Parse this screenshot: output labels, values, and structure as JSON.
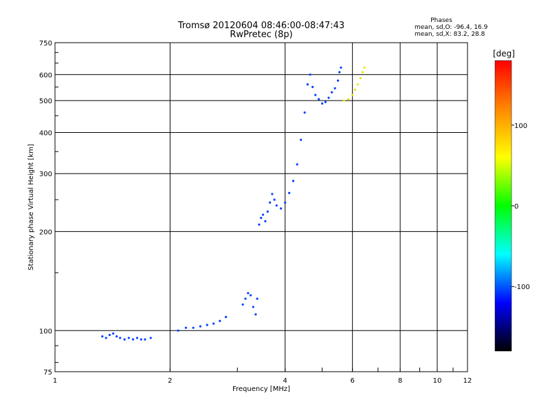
{
  "chart_data": {
    "type": "scatter",
    "title": "Tromsø 20120604 08:46:00-08:47:43",
    "subtitle": "RwPretec (8p)",
    "xlabel": "Frequency [MHz]",
    "ylabel": "Stationary phase Virtual Height [km]",
    "x_scale": "log",
    "y_scale": "log",
    "xlim": [
      1,
      12
    ],
    "ylim": [
      75,
      750
    ],
    "x_ticks": [
      1,
      2,
      4,
      6,
      8,
      10,
      12
    ],
    "x_tick_labels": [
      "1",
      "2",
      "4",
      "6",
      "8",
      "10",
      "12"
    ],
    "x_gridlines": [
      2,
      4,
      6,
      8,
      10
    ],
    "y_ticks": [
      75,
      100,
      200,
      300,
      400,
      500,
      600,
      750
    ],
    "y_tick_labels": [
      "75",
      "100",
      "200",
      "300",
      "400",
      "500",
      "600",
      "750"
    ],
    "grid": true,
    "phases_box": {
      "heading": "Phases",
      "line1": "mean, sd,O: -96.4, 16.9",
      "line2": "mean, sd,X:  83.2, 28.8"
    },
    "colorbar": {
      "label": "[deg]",
      "ticks": [
        100,
        0,
        -100
      ],
      "tick_labels": [
        "100",
        "0",
        "-100"
      ],
      "range": [
        -180,
        180
      ],
      "colors": [
        "#ff0000",
        "#ff8800",
        "#ffff00",
        "#00ff00",
        "#00ffff",
        "#0000ff",
        "#000000"
      ]
    },
    "series": [
      {
        "mode": "O",
        "color": "#0040ff",
        "x": [
          1.33,
          1.36,
          1.39,
          1.42,
          1.45,
          1.48,
          1.52,
          1.56,
          1.6,
          1.64,
          1.68,
          1.72,
          1.78,
          2.1,
          2.2,
          2.3,
          2.4,
          2.5,
          2.6,
          2.7,
          2.8,
          3.1,
          3.15,
          3.2,
          3.25,
          3.3,
          3.35,
          3.38,
          3.42,
          3.46,
          3.5,
          3.55,
          3.6,
          3.65,
          3.7,
          3.75,
          3.8,
          3.9,
          4.0,
          4.1,
          4.2,
          4.3,
          4.4,
          4.5,
          4.58,
          4.65,
          4.72,
          4.8,
          4.9,
          5.0,
          5.1,
          5.2,
          5.3,
          5.4,
          5.5,
          5.55,
          5.6
        ],
        "y": [
          96,
          95,
          97,
          98,
          96,
          95,
          94,
          95,
          94,
          95,
          94,
          94,
          95,
          100,
          102,
          102,
          103,
          104,
          105,
          107,
          110,
          120,
          125,
          130,
          128,
          118,
          112,
          125,
          210,
          220,
          225,
          215,
          230,
          245,
          260,
          250,
          240,
          235,
          245,
          262,
          285,
          320,
          380,
          460,
          560,
          600,
          550,
          520,
          505,
          490,
          495,
          510,
          530,
          545,
          575,
          610,
          630
        ]
      },
      {
        "mode": "X",
        "color": "#e6e600",
        "x": [
          5.7,
          5.85,
          6.0,
          6.1,
          6.2,
          6.3,
          6.38,
          6.45
        ],
        "y": [
          500,
          505,
          520,
          540,
          560,
          585,
          610,
          630
        ]
      }
    ]
  }
}
